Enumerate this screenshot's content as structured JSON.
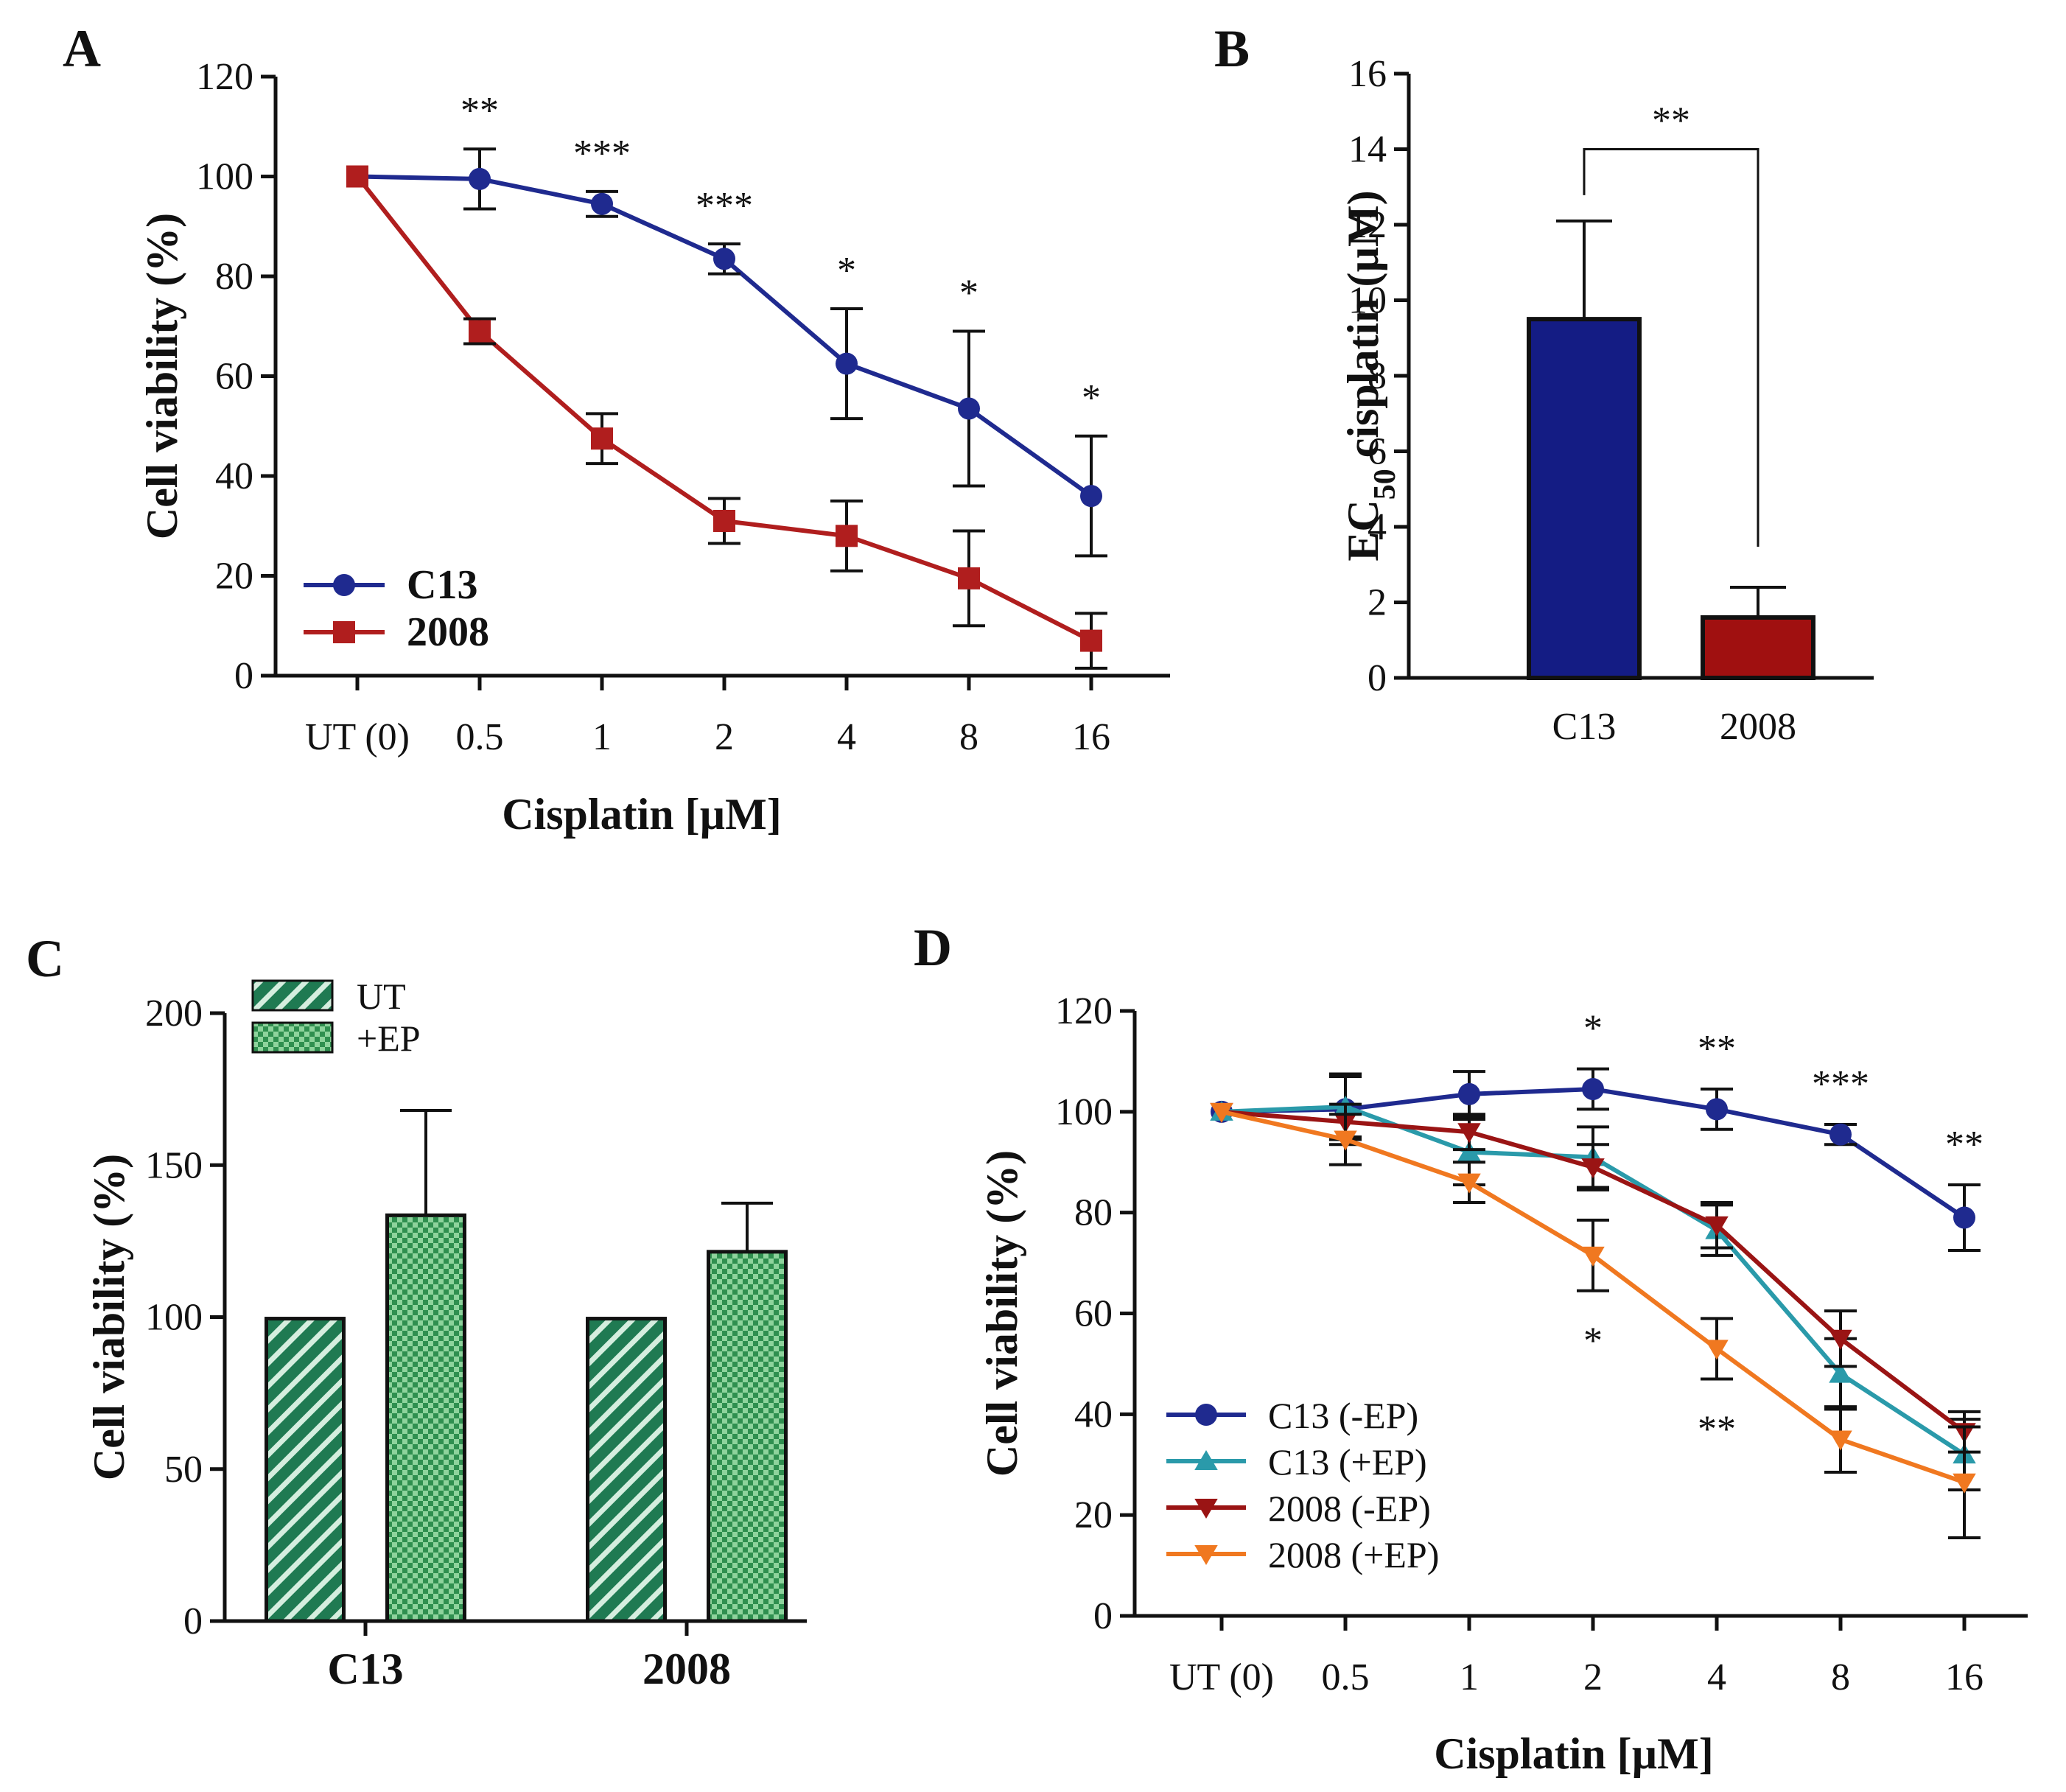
{
  "chart_data": [
    {
      "panel": "A",
      "type": "line",
      "xlabel": "Cisplatin [µM]",
      "ylabel": "Cell viability (%)",
      "ylim": [
        0,
        120
      ],
      "yticks": [
        "0",
        "20",
        "40",
        "60",
        "80",
        "100",
        "120"
      ],
      "categories": [
        "UT (0)",
        "0.5",
        "1",
        "2",
        "4",
        "8",
        "16"
      ],
      "series": [
        {
          "name": "C13",
          "color": "#1f2a8f",
          "marker": "circle",
          "values": [
            100,
            99.5,
            94.5,
            83.5,
            62.5,
            53.5,
            36
          ],
          "errors": [
            0,
            6,
            2.5,
            3,
            11,
            15.5,
            12
          ]
        },
        {
          "name": "2008",
          "color": "#b01e1e",
          "marker": "square",
          "values": [
            100,
            69,
            47.5,
            31,
            28,
            19.5,
            7
          ],
          "errors": [
            0,
            2.5,
            5,
            4.5,
            7,
            9.5,
            5.5
          ]
        }
      ],
      "significance": [
        "",
        "**",
        "***",
        "***",
        "*",
        "*",
        "*"
      ],
      "legend_position": "bottom-left"
    },
    {
      "panel": "B",
      "type": "bar",
      "ylabel_main": "EC",
      "ylabel_sub": "50",
      "ylabel_rest": " cisplatin (µM)",
      "ylim": [
        0,
        16
      ],
      "yticks": [
        "0",
        "2",
        "4",
        "6",
        "8",
        "10",
        "12",
        "14",
        "16"
      ],
      "categories": [
        "C13",
        "2008"
      ],
      "values": [
        9.5,
        1.6
      ],
      "errors": [
        2.6,
        0.8
      ],
      "colors": [
        "#141c84",
        "#a01010"
      ],
      "bracket_label": "**"
    },
    {
      "panel": "C",
      "type": "bar",
      "ylabel": "Cell viability (%)",
      "ylim": [
        0,
        200
      ],
      "yticks": [
        "0",
        "50",
        "100",
        "150",
        "200"
      ],
      "categories": [
        "C13",
        "2008"
      ],
      "series": [
        {
          "name": "UT",
          "pattern": "diagonal",
          "values": [
            99.5,
            99.5
          ],
          "errors": [
            0,
            0
          ]
        },
        {
          "name": "+EP",
          "pattern": "checker",
          "values": [
            133.5,
            121.5
          ],
          "errors": [
            34.5,
            16
          ]
        }
      ],
      "pattern_colors": {
        "diagonal_bg": "#1f7a52",
        "diagonal_line": "#d5eedf",
        "checker_bg": "#8ed39c",
        "checker_dot": "#2f8f4f"
      },
      "legend_position": "top-left"
    },
    {
      "panel": "D",
      "type": "line",
      "xlabel": "Cisplatin [µM]",
      "ylabel": "Cell viability (%)",
      "ylim": [
        0,
        120
      ],
      "yticks": [
        "0",
        "20",
        "40",
        "60",
        "80",
        "100",
        "120"
      ],
      "categories": [
        "UT (0)",
        "0.5",
        "1",
        "2",
        "4",
        "8",
        "16"
      ],
      "series": [
        {
          "name": "C13 (-EP)",
          "color": "#1f2a8f",
          "marker": "circle",
          "values": [
            100,
            100.5,
            103.5,
            104.5,
            100.5,
            95.5,
            79
          ],
          "errors": [
            0,
            7,
            4.5,
            4,
            4,
            2,
            6.5
          ]
        },
        {
          "name": "C13 (+EP)",
          "color": "#2a9aaa",
          "marker": "triangle-up",
          "values": [
            100,
            101,
            92,
            91,
            76.5,
            48,
            32
          ],
          "errors": [
            0,
            6,
            6.5,
            6,
            5,
            7,
            7
          ]
        },
        {
          "name": "2008 (-EP)",
          "color": "#9a1414",
          "marker": "triangle-down",
          "values": [
            100,
            98,
            96,
            89,
            77.5,
            55,
            36.5
          ],
          "errors": [
            0,
            3.5,
            3.5,
            4.5,
            4.5,
            5.5,
            4
          ]
        },
        {
          "name": "2008 (+EP)",
          "color": "#f07820",
          "marker": "triangle-down",
          "values": [
            100,
            94.5,
            86,
            71.5,
            53,
            35,
            26.5
          ],
          "errors": [
            0,
            5,
            4,
            7,
            6,
            6.5,
            11
          ]
        }
      ],
      "significance_top": [
        "",
        "",
        "",
        "*",
        "**",
        "***",
        "**"
      ],
      "significance_bottom": [
        "",
        "",
        "",
        "*",
        "**",
        "",
        ""
      ],
      "legend_position": "bottom-left"
    }
  ]
}
